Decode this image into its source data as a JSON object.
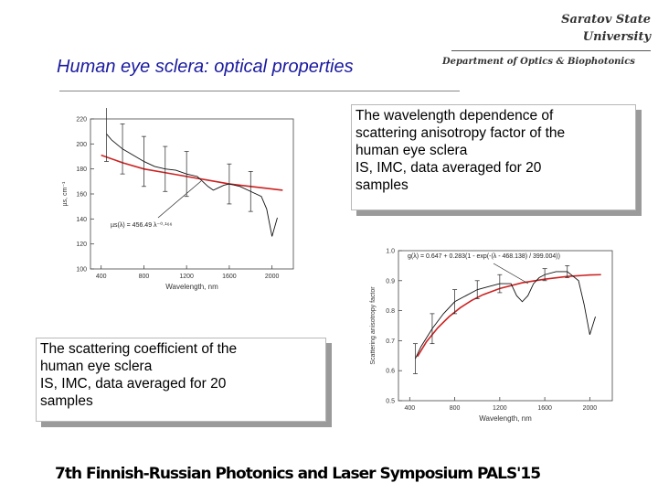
{
  "header": {
    "university_line1": "Saratov State",
    "university_line2": "University",
    "department": "Department of Optics & Biophotonics",
    "slide_title": "Human eye sclera: optical properties"
  },
  "notes": {
    "right": [
      "The wavelength dependence of",
      "scattering anisotropy factor of the",
      "human eye sclera",
      "IS, IMC, data averaged for 20",
      "samples"
    ],
    "left": [
      "The scattering coefficient of the",
      "human eye sclera",
      "IS, IMC, data averaged for 20",
      "samples"
    ]
  },
  "footer": {
    "text": "7th Finnish-Russian Photonics and Laser Symposium PALS'15"
  },
  "colors": {
    "title": "#1a1aa0",
    "fit_curve": "#cc2222",
    "data_line": "#111111"
  },
  "chart_data": [
    {
      "type": "line",
      "xlabel": "Wavelength, nm",
      "ylabel": "µs, cm⁻¹",
      "xlim": [
        300,
        2200
      ],
      "ylim": [
        100,
        220
      ],
      "xticks": [
        400,
        800,
        1200,
        1600,
        2000
      ],
      "yticks": [
        100,
        120,
        140,
        160,
        180,
        200,
        220
      ],
      "annotation": "µs(λ) = 456.49 λ⁻⁰·¹⁶⁶",
      "series": [
        {
          "x": [
            450,
            500,
            600,
            700,
            800,
            900,
            1000,
            1100,
            1200,
            1300,
            1350,
            1400,
            1450,
            1500,
            1550,
            1600,
            1700,
            1800,
            1900,
            1950,
            2000,
            2050
          ],
          "y": [
            208,
            203,
            196,
            191,
            186,
            182,
            180,
            179,
            176,
            174,
            170,
            166,
            163,
            165,
            167,
            168,
            166,
            162,
            158,
            148,
            126,
            141
          ],
          "errors": [
            22,
            0,
            20,
            0,
            20,
            0,
            18,
            0,
            18,
            0,
            0,
            0,
            0,
            0,
            0,
            16,
            0,
            16,
            0,
            0,
            0,
            0
          ]
        },
        {
          "x": [
            400,
            600,
            800,
            1000,
            1200,
            1400,
            1600,
            1800,
            2000,
            2100
          ],
          "y": [
            191,
            185,
            180,
            177,
            174,
            171,
            168,
            166,
            164,
            163
          ]
        }
      ]
    },
    {
      "type": "line",
      "xlabel": "Wavelength, nm",
      "ylabel": "Scattering anisotropy factor",
      "xlim": [
        300,
        2200
      ],
      "ylim": [
        0.5,
        1.0
      ],
      "xticks": [
        400,
        800,
        1200,
        1600,
        2000
      ],
      "yticks": [
        0.5,
        0.6,
        0.7,
        0.8,
        0.9,
        1.0
      ],
      "ytick_labels": [
        "0.5",
        "0.6",
        "0.7",
        "0.8",
        "0.9",
        "1.0"
      ],
      "annotation": "g(λ) = 0.647 + 0.283(1 - exp(-(λ - 468.138) / 399.004))",
      "series": [
        {
          "x": [
            450,
            500,
            600,
            700,
            800,
            900,
            1000,
            1100,
            1200,
            1300,
            1350,
            1400,
            1450,
            1500,
            1550,
            1600,
            1700,
            1800,
            1900,
            1950,
            2000,
            2050
          ],
          "y": [
            0.64,
            0.68,
            0.74,
            0.79,
            0.83,
            0.85,
            0.87,
            0.88,
            0.89,
            0.89,
            0.85,
            0.83,
            0.85,
            0.89,
            0.91,
            0.92,
            0.93,
            0.93,
            0.9,
            0.82,
            0.72,
            0.78
          ],
          "errors": [
            0.05,
            0,
            0.05,
            0,
            0.04,
            0,
            0.03,
            0,
            0.03,
            0,
            0,
            0,
            0,
            0,
            0,
            0.02,
            0,
            0.02,
            0,
            0,
            0,
            0
          ]
        },
        {
          "x": [
            468,
            550,
            650,
            750,
            850,
            950,
            1050,
            1200,
            1400,
            1600,
            1800,
            2000,
            2100
          ],
          "y": [
            0.647,
            0.697,
            0.743,
            0.78,
            0.81,
            0.834,
            0.853,
            0.874,
            0.893,
            0.905,
            0.914,
            0.919,
            0.92
          ]
        }
      ]
    }
  ]
}
